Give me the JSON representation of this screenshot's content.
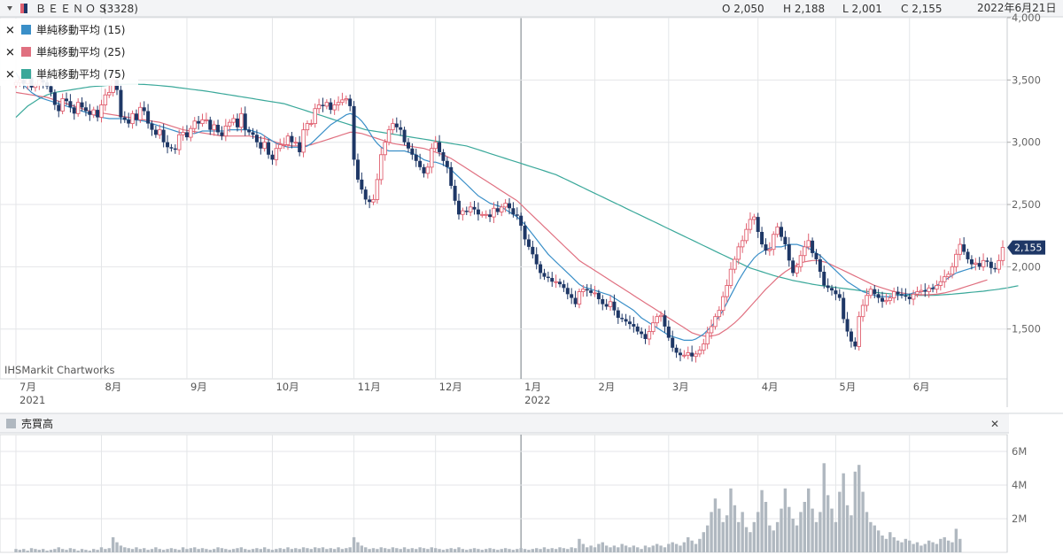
{
  "header": {
    "ticker": "ＢＥＥＮＯＳ",
    "code": "(3328)",
    "open": "O 2,050",
    "high": "H 2,188",
    "low": "L 2,001",
    "close": "C 2,155",
    "date": "2022年6月21日"
  },
  "legend": [
    {
      "label": "単純移動平均 (15)",
      "color": "#3a8fc8",
      "close_icon": "✕"
    },
    {
      "label": "単純移動平均 (25)",
      "color": "#e07080",
      "close_icon": "✕"
    },
    {
      "label": "単純移動平均 (75)",
      "color": "#3aa89a",
      "close_icon": "✕"
    }
  ],
  "watermark": "IHSMarkit Chartworks",
  "last_price_label": "2,155",
  "volume_panel": {
    "title": "売買高",
    "close_icon": "✕",
    "color": "#b0b8c0"
  },
  "colors": {
    "up": "#e06070",
    "down": "#1e3766",
    "accent": "#1e3766"
  },
  "chart_data": {
    "type": "candlestick",
    "ylim": [
      1100,
      4000
    ],
    "yticks": [
      1500,
      2000,
      2500,
      3000,
      3500,
      4000
    ],
    "ytick_labels": [
      "1,500",
      "2,000",
      "2,500",
      "3,000",
      "3,500",
      "4,000"
    ],
    "x_month_labels": [
      {
        "label": "7月",
        "year": "2021",
        "index": 0
      },
      {
        "label": "8月",
        "index": 22
      },
      {
        "label": "9月",
        "index": 44
      },
      {
        "label": "10月",
        "index": 66
      },
      {
        "label": "11月",
        "index": 87
      },
      {
        "label": "12月",
        "index": 108
      },
      {
        "label": "1月",
        "year": "2022",
        "index": 130
      },
      {
        "label": "2月",
        "index": 149
      },
      {
        "label": "3月",
        "index": 168
      },
      {
        "label": "4月",
        "index": 191
      },
      {
        "label": "5月",
        "index": 211
      },
      {
        "label": "6月",
        "index": 230
      }
    ],
    "closes": [
      3480,
      3500,
      3470,
      3520,
      3440,
      3460,
      3500,
      3480,
      3450,
      3400,
      3300,
      3250,
      3350,
      3330,
      3280,
      3230,
      3320,
      3280,
      3250,
      3220,
      3260,
      3200,
      3300,
      3380,
      3400,
      3500,
      3420,
      3200,
      3180,
      3150,
      3230,
      3180,
      3280,
      3250,
      3150,
      3100,
      3060,
      3100,
      3000,
      2960,
      2950,
      2940,
      3060,
      3080,
      3040,
      3110,
      3170,
      3150,
      3180,
      3180,
      3100,
      3140,
      3080,
      3050,
      3130,
      3160,
      3190,
      3120,
      3230,
      3100,
      3080,
      3060,
      3000,
      2950,
      3000,
      2900,
      2860,
      2950,
      2980,
      2980,
      3050,
      3000,
      3000,
      2920,
      3100,
      3150,
      3150,
      3270,
      3300,
      3290,
      3320,
      3260,
      3300,
      3320,
      3340,
      3350,
      3290,
      2860,
      2700,
      2620,
      2540,
      2520,
      2540,
      2700,
      2900,
      3000,
      3100,
      3150,
      3120,
      3100,
      3000,
      2950,
      2900,
      2850,
      2800,
      2750,
      2800,
      2950,
      3000,
      2920,
      2850,
      2800,
      2650,
      2530,
      2420,
      2450,
      2440,
      2480,
      2460,
      2420,
      2420,
      2420,
      2400,
      2470,
      2440,
      2480,
      2510,
      2470,
      2420,
      2410,
      2330,
      2220,
      2160,
      2100,
      2020,
      1950,
      1920,
      1910,
      1880,
      1880,
      1860,
      1830,
      1780,
      1750,
      1700,
      1800,
      1820,
      1810,
      1790,
      1790,
      1740,
      1700,
      1680,
      1720,
      1650,
      1590,
      1580,
      1560,
      1540,
      1520,
      1480,
      1460,
      1420,
      1480,
      1550,
      1600,
      1610,
      1520,
      1430,
      1350,
      1310,
      1290,
      1290,
      1310,
      1280,
      1300,
      1330,
      1380,
      1470,
      1520,
      1600,
      1650,
      1760,
      1850,
      1980,
      2060,
      2160,
      2210,
      2300,
      2380,
      2400,
      2280,
      2180,
      2130,
      2140,
      2260,
      2320,
      2240,
      2180,
      2050,
      1950,
      2000,
      2090,
      2160,
      2210,
      2110,
      2060,
      1960,
      1850,
      1830,
      1810,
      1780,
      1750,
      1580,
      1480,
      1400,
      1360,
      1600,
      1690,
      1770,
      1820,
      1780,
      1750,
      1720,
      1730,
      1750,
      1800,
      1780,
      1770,
      1760,
      1740,
      1780,
      1800,
      1810,
      1800,
      1830,
      1820,
      1850,
      1880,
      1920,
      1940,
      2000,
      2100,
      2180,
      2120,
      2060,
      2020,
      2030,
      2000,
      2050,
      2040,
      1990,
      1980,
      2050,
      2155
    ],
    "ma15": [
      3560,
      3500,
      3460,
      3430,
      3400,
      3380,
      3360,
      3350,
      3340,
      3330,
      3320,
      3310,
      3300,
      3290,
      3280,
      3270,
      3260,
      3250,
      3240,
      3230,
      3220,
      3210,
      3200,
      3195,
      3190,
      3190,
      3190,
      3190,
      3185,
      3180,
      3180,
      3180,
      3175,
      3170,
      3160,
      3150,
      3140,
      3130,
      3120,
      3110,
      3100,
      3090,
      3080,
      3070,
      3070,
      3070,
      3070,
      3080,
      3090,
      3090,
      3090,
      3090,
      3090,
      3090,
      3090,
      3100,
      3100,
      3100,
      3100,
      3100,
      3100,
      3090,
      3080,
      3070,
      3050,
      3030,
      3010,
      2990,
      2980,
      2970,
      2960,
      2960,
      2960,
      2960,
      2960,
      2970,
      2990,
      3020,
      3050,
      3080,
      3110,
      3140,
      3160,
      3180,
      3200,
      3220,
      3230,
      3220,
      3200,
      3170,
      3130,
      3080,
      3030,
      2990,
      2960,
      2940,
      2930,
      2930,
      2930,
      2930,
      2930,
      2920,
      2910,
      2900,
      2880,
      2860,
      2850,
      2840,
      2840,
      2830,
      2820,
      2800,
      2780,
      2750,
      2720,
      2690,
      2660,
      2630,
      2600,
      2570,
      2550,
      2530,
      2510,
      2500,
      2490,
      2480,
      2460,
      2440,
      2420,
      2400,
      2370,
      2340,
      2300,
      2260,
      2220,
      2180,
      2140,
      2100,
      2070,
      2040,
      2010,
      1980,
      1950,
      1920,
      1890,
      1860,
      1840,
      1830,
      1820,
      1810,
      1800,
      1790,
      1780,
      1770,
      1750,
      1730,
      1710,
      1690,
      1670,
      1650,
      1620,
      1590,
      1570,
      1550,
      1530,
      1510,
      1490,
      1470,
      1450,
      1440,
      1430,
      1420,
      1410,
      1410,
      1410,
      1420,
      1440,
      1460,
      1490,
      1520,
      1560,
      1600,
      1650,
      1710,
      1770,
      1830,
      1890,
      1940,
      1990,
      2030,
      2070,
      2100,
      2120,
      2140,
      2150,
      2160,
      2160,
      2160,
      2170,
      2180,
      2180,
      2180,
      2170,
      2160,
      2150,
      2130,
      2110,
      2090,
      2060,
      2030,
      2000,
      1970,
      1940,
      1910,
      1880,
      1860,
      1840,
      1820,
      1800,
      1790,
      1780,
      1770,
      1760,
      1760,
      1760,
      1760,
      1770,
      1770,
      1770,
      1780,
      1780,
      1790,
      1790,
      1800,
      1810,
      1820,
      1830,
      1850,
      1870,
      1890,
      1910,
      1930,
      1950,
      1960,
      1970,
      1980,
      1990,
      2000
    ],
    "ma25": [
      3400,
      3395,
      3390,
      3385,
      3380,
      3375,
      3370,
      3365,
      3360,
      3350,
      3340,
      3330,
      3320,
      3310,
      3300,
      3290,
      3280,
      3270,
      3260,
      3250,
      3245,
      3240,
      3235,
      3230,
      3225,
      3220,
      3215,
      3210,
      3205,
      3200,
      3195,
      3190,
      3185,
      3180,
      3175,
      3170,
      3165,
      3160,
      3150,
      3140,
      3130,
      3120,
      3110,
      3100,
      3095,
      3090,
      3085,
      3080,
      3075,
      3070,
      3065,
      3060,
      3055,
      3050,
      3050,
      3050,
      3050,
      3050,
      3050,
      3050,
      3050,
      3045,
      3040,
      3035,
      3030,
      3020,
      3010,
      3000,
      2990,
      2980,
      2975,
      2970,
      2970,
      2970,
      2970,
      2975,
      2980,
      2990,
      3000,
      3010,
      3020,
      3030,
      3040,
      3050,
      3060,
      3070,
      3080,
      3080,
      3075,
      3070,
      3060,
      3050,
      3040,
      3030,
      3020,
      3010,
      3000,
      2990,
      2985,
      2980,
      2975,
      2970,
      2965,
      2960,
      2955,
      2950,
      2940,
      2930,
      2920,
      2910,
      2900,
      2885,
      2870,
      2850,
      2830,
      2810,
      2790,
      2770,
      2750,
      2730,
      2710,
      2690,
      2670,
      2650,
      2630,
      2610,
      2590,
      2570,
      2550,
      2530,
      2500,
      2470,
      2440,
      2410,
      2380,
      2350,
      2320,
      2290,
      2260,
      2230,
      2200,
      2170,
      2140,
      2110,
      2080,
      2050,
      2030,
      2010,
      1990,
      1970,
      1950,
      1930,
      1910,
      1890,
      1870,
      1850,
      1830,
      1810,
      1790,
      1770,
      1750,
      1730,
      1710,
      1690,
      1670,
      1650,
      1630,
      1610,
      1590,
      1570,
      1550,
      1530,
      1510,
      1490,
      1470,
      1460,
      1450,
      1445,
      1440,
      1445,
      1450,
      1460,
      1480,
      1500,
      1525,
      1550,
      1580,
      1610,
      1645,
      1680,
      1715,
      1750,
      1785,
      1820,
      1850,
      1880,
      1910,
      1935,
      1960,
      1980,
      2000,
      2015,
      2030,
      2040,
      2045,
      2050,
      2050,
      2045,
      2040,
      2030,
      2015,
      2000,
      1985,
      1970,
      1955,
      1940,
      1925,
      1910,
      1895,
      1880,
      1865,
      1850,
      1840,
      1830,
      1820,
      1810,
      1800,
      1795,
      1790,
      1785,
      1780,
      1778,
      1776,
      1775,
      1775,
      1776,
      1778,
      1780,
      1785,
      1790,
      1798,
      1806,
      1815,
      1825,
      1835,
      1845,
      1855,
      1865,
      1875,
      1885,
      1895
    ],
    "ma75": [
      3200,
      3230,
      3260,
      3290,
      3310,
      3330,
      3350,
      3365,
      3380,
      3390,
      3400,
      3405,
      3410,
      3415,
      3420,
      3425,
      3430,
      3435,
      3440,
      3445,
      3448,
      3450,
      3452,
      3455,
      3458,
      3460,
      3462,
      3464,
      3465,
      3466,
      3466,
      3466,
      3465,
      3464,
      3462,
      3460,
      3458,
      3455,
      3452,
      3449,
      3446,
      3442,
      3438,
      3434,
      3430,
      3426,
      3422,
      3418,
      3414,
      3410,
      3405,
      3400,
      3395,
      3390,
      3385,
      3380,
      3375,
      3370,
      3365,
      3360,
      3355,
      3350,
      3345,
      3340,
      3335,
      3330,
      3325,
      3320,
      3315,
      3310,
      3300,
      3290,
      3280,
      3270,
      3260,
      3250,
      3240,
      3230,
      3220,
      3210,
      3200,
      3190,
      3180,
      3170,
      3160,
      3150,
      3140,
      3130,
      3120,
      3110,
      3100,
      3095,
      3090,
      3085,
      3080,
      3075,
      3070,
      3065,
      3060,
      3055,
      3050,
      3045,
      3040,
      3035,
      3030,
      3025,
      3020,
      3015,
      3010,
      3005,
      3000,
      2995,
      2990,
      2985,
      2980,
      2975,
      2970,
      2960,
      2950,
      2940,
      2930,
      2920,
      2910,
      2900,
      2890,
      2880,
      2870,
      2860,
      2850,
      2840,
      2830,
      2820,
      2810,
      2800,
      2790,
      2780,
      2770,
      2760,
      2750,
      2740,
      2725,
      2710,
      2695,
      2680,
      2665,
      2650,
      2635,
      2620,
      2605,
      2590,
      2575,
      2560,
      2545,
      2530,
      2515,
      2500,
      2485,
      2470,
      2455,
      2440,
      2425,
      2410,
      2395,
      2380,
      2365,
      2350,
      2335,
      2320,
      2305,
      2290,
      2275,
      2260,
      2245,
      2230,
      2215,
      2200,
      2185,
      2170,
      2155,
      2140,
      2125,
      2110,
      2095,
      2080,
      2065,
      2050,
      2035,
      2020,
      2005,
      1990,
      1980,
      1970,
      1960,
      1950,
      1940,
      1930,
      1922,
      1914,
      1906,
      1898,
      1890,
      1884,
      1878,
      1872,
      1866,
      1860,
      1855,
      1850,
      1846,
      1842,
      1838,
      1834,
      1830,
      1826,
      1822,
      1818,
      1814,
      1810,
      1806,
      1802,
      1798,
      1795,
      1792,
      1789,
      1786,
      1783,
      1780,
      1778,
      1776,
      1774,
      1772,
      1770,
      1770,
      1770,
      1770,
      1770,
      1770,
      1772,
      1774,
      1776,
      1778,
      1780,
      1783,
      1786,
      1789,
      1792,
      1795,
      1798,
      1801,
      1804,
      1808,
      1812,
      1816,
      1820,
      1825,
      1830,
      1836,
      1842,
      1848
    ],
    "volume": {
      "ylim": [
        0,
        7000000
      ],
      "yticks": [
        2000000,
        4000000,
        6000000
      ],
      "ytick_labels": [
        "2M",
        "4M",
        "6M"
      ],
      "values_m": [
        0.2,
        0.15,
        0.2,
        0.1,
        0.25,
        0.2,
        0.15,
        0.2,
        0.1,
        0.15,
        0.2,
        0.3,
        0.2,
        0.15,
        0.25,
        0.2,
        0.1,
        0.2,
        0.15,
        0.1,
        0.2,
        0.15,
        0.3,
        0.2,
        0.25,
        0.9,
        0.6,
        0.4,
        0.3,
        0.25,
        0.2,
        0.3,
        0.2,
        0.25,
        0.15,
        0.2,
        0.3,
        0.2,
        0.15,
        0.2,
        0.25,
        0.2,
        0.15,
        0.3,
        0.2,
        0.25,
        0.3,
        0.2,
        0.25,
        0.2,
        0.15,
        0.2,
        0.3,
        0.25,
        0.2,
        0.15,
        0.2,
        0.25,
        0.3,
        0.2,
        0.15,
        0.2,
        0.25,
        0.2,
        0.3,
        0.2,
        0.15,
        0.2,
        0.25,
        0.2,
        0.3,
        0.2,
        0.25,
        0.2,
        0.3,
        0.25,
        0.2,
        0.3,
        0.25,
        0.3,
        0.2,
        0.25,
        0.2,
        0.3,
        0.2,
        0.25,
        0.3,
        0.9,
        0.6,
        0.4,
        0.3,
        0.2,
        0.25,
        0.2,
        0.3,
        0.25,
        0.2,
        0.3,
        0.25,
        0.2,
        0.3,
        0.2,
        0.25,
        0.2,
        0.3,
        0.25,
        0.2,
        0.3,
        0.25,
        0.2,
        0.15,
        0.2,
        0.25,
        0.2,
        0.3,
        0.2,
        0.15,
        0.2,
        0.25,
        0.2,
        0.15,
        0.2,
        0.25,
        0.2,
        0.15,
        0.2,
        0.25,
        0.2,
        0.15,
        0.2,
        0.25,
        0.2,
        0.15,
        0.2,
        0.25,
        0.2,
        0.3,
        0.2,
        0.25,
        0.2,
        0.3,
        0.25,
        0.2,
        0.3,
        0.25,
        0.8,
        0.5,
        0.3,
        0.4,
        0.3,
        0.5,
        0.6,
        0.4,
        0.3,
        0.4,
        0.3,
        0.5,
        0.4,
        0.3,
        0.4,
        0.3,
        0.2,
        0.4,
        0.3,
        0.4,
        0.5,
        0.4,
        0.3,
        0.5,
        0.6,
        0.5,
        0.4,
        0.6,
        0.9,
        0.7,
        0.5,
        0.8,
        1.2,
        1.6,
        2.4,
        3.2,
        2.6,
        1.8,
        2.2,
        3.8,
        2.8,
        1.8,
        2.4,
        1.5,
        1.2,
        1.8,
        2.4,
        3.7,
        3.0,
        1.6,
        1.3,
        1.8,
        2.6,
        3.8,
        2.7,
        2.0,
        1.6,
        2.4,
        3.0,
        3.8,
        2.6,
        1.8,
        2.4,
        5.3,
        3.4,
        2.6,
        1.8,
        3.6,
        4.7,
        2.8,
        2.2,
        4.8,
        5.2,
        3.6,
        2.4,
        1.8,
        1.6,
        1.3,
        1.0,
        0.8,
        1.2,
        0.9,
        0.7,
        0.6,
        0.8,
        0.7,
        0.5,
        0.6,
        0.4,
        0.5,
        0.7,
        0.6,
        0.5,
        0.8,
        0.9,
        0.7,
        0.6,
        1.4,
        0.8
      ]
    }
  }
}
